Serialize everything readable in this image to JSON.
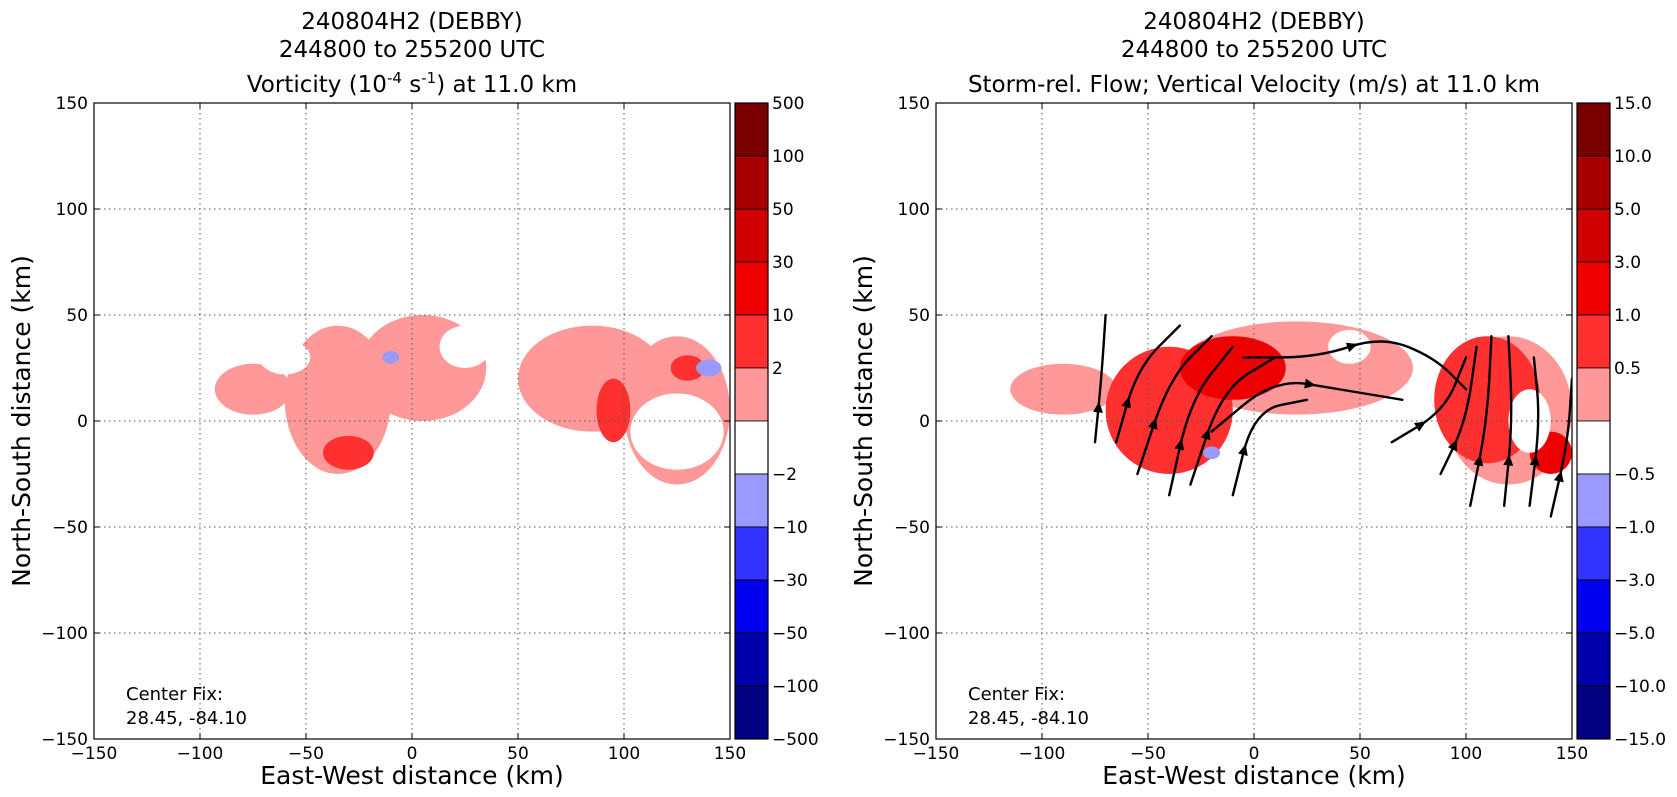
{
  "chart_data": [
    {
      "type": "heatmap",
      "title_lines": [
        "240804H2 (DEBBY)",
        "244800 to 255200 UTC"
      ],
      "title_line3": {
        "pre": "Vorticity (10",
        "sup1": "-4",
        "mid": " s",
        "sup2": "-1",
        "post": ") at 11.0 km"
      },
      "xlabel": "East-West distance (km)",
      "ylabel": "North-South distance (km)",
      "xlim": [
        -150,
        150
      ],
      "ylim": [
        -150,
        150
      ],
      "xticks": [
        -150,
        -100,
        -50,
        0,
        50,
        100,
        150
      ],
      "yticks": [
        -150,
        -100,
        -50,
        0,
        50,
        100,
        150
      ],
      "xtick_labels": [
        "−150",
        "−100",
        "−50",
        "0",
        "50",
        "100",
        "150"
      ],
      "ytick_labels": [
        "−150",
        "−100",
        "−50",
        "0",
        "50",
        "100",
        "150"
      ],
      "grid": true,
      "annotation_lines": [
        "Center Fix:",
        "28.45, -84.10"
      ],
      "colorbar": {
        "labels": [
          "500",
          "100",
          "50",
          "30",
          "10",
          "2",
          "−2",
          "−10",
          "−30",
          "−50",
          "−100",
          "−500"
        ],
        "colors": [
          "#7a0000",
          "#a80000",
          "#d00000",
          "#ee0000",
          "#ff3030",
          "#ff9999",
          "#ffffff",
          "#9999ff",
          "#3333ff",
          "#0000ee",
          "#0000aa",
          "#000080"
        ]
      },
      "regions": [
        {
          "level": 2,
          "x": -75,
          "y": 15,
          "rx": 18,
          "ry": 12
        },
        {
          "level": 2,
          "x": -35,
          "y": 10,
          "rx": 25,
          "ry": 35
        },
        {
          "level": 2,
          "x": 5,
          "y": 25,
          "rx": 30,
          "ry": 25
        },
        {
          "level": 2,
          "x": 85,
          "y": 20,
          "rx": 35,
          "ry": 25
        },
        {
          "level": 2,
          "x": 125,
          "y": 5,
          "rx": 25,
          "ry": 35
        },
        {
          "level": 10,
          "x": -30,
          "y": -15,
          "rx": 12,
          "ry": 8
        },
        {
          "level": 10,
          "x": 95,
          "y": 5,
          "rx": 8,
          "ry": 15
        },
        {
          "level": 10,
          "x": 130,
          "y": 25,
          "rx": 8,
          "ry": 6
        },
        {
          "level": -2,
          "x": -60,
          "y": 30,
          "rx": 12,
          "ry": 8
        },
        {
          "level": -2,
          "x": 25,
          "y": 35,
          "rx": 12,
          "ry": 10
        },
        {
          "level": -2,
          "x": 125,
          "y": -5,
          "rx": 22,
          "ry": 18
        },
        {
          "level": -10,
          "x": -10,
          "y": 30,
          "rx": 4,
          "ry": 3
        },
        {
          "level": -10,
          "x": 140,
          "y": 25,
          "rx": 6,
          "ry": 4
        }
      ]
    },
    {
      "type": "heatmap",
      "title_lines": [
        "240804H2 (DEBBY)",
        "244800 to 255200 UTC"
      ],
      "title_line3": {
        "pre": "Storm-rel. Flow; Vertical Velocity (m/s) at 11.0 km",
        "sup1": "",
        "mid": "",
        "sup2": "",
        "post": ""
      },
      "xlabel": "East-West distance (km)",
      "ylabel": "North-South distance (km)",
      "xlim": [
        -150,
        150
      ],
      "ylim": [
        -150,
        150
      ],
      "xticks": [
        -150,
        -100,
        -50,
        0,
        50,
        100,
        150
      ],
      "yticks": [
        -150,
        -100,
        -50,
        0,
        50,
        100,
        150
      ],
      "xtick_labels": [
        "−150",
        "−100",
        "−50",
        "0",
        "50",
        "100",
        "150"
      ],
      "ytick_labels": [
        "−150",
        "−100",
        "−50",
        "0",
        "50",
        "100",
        "150"
      ],
      "grid": true,
      "annotation_lines": [
        "Center Fix:",
        "28.45, -84.10"
      ],
      "colorbar": {
        "labels": [
          "15.0",
          "10.0",
          "5.0",
          "3.0",
          "1.0",
          "0.5",
          "−0.5",
          "−1.0",
          "−3.0",
          "−5.0",
          "−10.0",
          "−15.0"
        ],
        "colors": [
          "#7a0000",
          "#a80000",
          "#d00000",
          "#ee0000",
          "#ff3030",
          "#ff9999",
          "#ffffff",
          "#9999ff",
          "#3333ff",
          "#0000ee",
          "#0000aa",
          "#000080"
        ]
      },
      "regions": [
        {
          "level": 0.5,
          "x": -90,
          "y": 15,
          "rx": 25,
          "ry": 12
        },
        {
          "level": 0.5,
          "x": 20,
          "y": 25,
          "rx": 55,
          "ry": 22
        },
        {
          "level": 0.5,
          "x": 120,
          "y": 5,
          "rx": 30,
          "ry": 35
        },
        {
          "level": 1.0,
          "x": -40,
          "y": 5,
          "rx": 30,
          "ry": 30
        },
        {
          "level": 1.0,
          "x": 110,
          "y": 10,
          "rx": 25,
          "ry": 30
        },
        {
          "level": 3.0,
          "x": -10,
          "y": 25,
          "rx": 25,
          "ry": 15
        },
        {
          "level": 3.0,
          "x": 140,
          "y": -15,
          "rx": 10,
          "ry": 10
        },
        {
          "level": -0.5,
          "x": 45,
          "y": 35,
          "rx": 10,
          "ry": 8
        },
        {
          "level": -0.5,
          "x": 130,
          "y": 0,
          "rx": 10,
          "ry": 15
        },
        {
          "level": -1.0,
          "x": -20,
          "y": -15,
          "rx": 4,
          "ry": 3
        }
      ],
      "streamlines": [
        {
          "points": [
            [
              -75,
              -10
            ],
            [
              -72,
              20
            ],
            [
              -70,
              50
            ]
          ]
        },
        {
          "points": [
            [
              -65,
              -10
            ],
            [
              -55,
              25
            ],
            [
              -35,
              45
            ]
          ]
        },
        {
          "points": [
            [
              -55,
              -25
            ],
            [
              -40,
              20
            ],
            [
              -20,
              40
            ]
          ]
        },
        {
          "points": [
            [
              -40,
              -35
            ],
            [
              -30,
              10
            ],
            [
              -10,
              35
            ]
          ]
        },
        {
          "points": [
            [
              -30,
              -30
            ],
            [
              -15,
              15
            ],
            [
              10,
              30
            ]
          ]
        },
        {
          "points": [
            [
              -10,
              -35
            ],
            [
              0,
              5
            ],
            [
              25,
              10
            ]
          ]
        },
        {
          "points": [
            [
              -20,
              -5
            ],
            [
              10,
              20
            ],
            [
              40,
              15
            ],
            [
              70,
              10
            ]
          ]
        },
        {
          "points": [
            [
              -5,
              30
            ],
            [
              30,
              30
            ],
            [
              60,
              40
            ],
            [
              85,
              30
            ],
            [
              100,
              15
            ]
          ]
        },
        {
          "points": [
            [
              65,
              -10
            ],
            [
              90,
              5
            ],
            [
              100,
              30
            ]
          ]
        },
        {
          "points": [
            [
              88,
              -25
            ],
            [
              100,
              0
            ],
            [
              105,
              35
            ]
          ]
        },
        {
          "points": [
            [
              102,
              -40
            ],
            [
              110,
              0
            ],
            [
              112,
              40
            ]
          ]
        },
        {
          "points": [
            [
              118,
              -40
            ],
            [
              122,
              0
            ],
            [
              120,
              40
            ]
          ]
        },
        {
          "points": [
            [
              130,
              -40
            ],
            [
              135,
              0
            ],
            [
              132,
              30
            ]
          ]
        },
        {
          "points": [
            [
              140,
              -45
            ],
            [
              148,
              -10
            ],
            [
              150,
              20
            ]
          ]
        }
      ]
    }
  ]
}
